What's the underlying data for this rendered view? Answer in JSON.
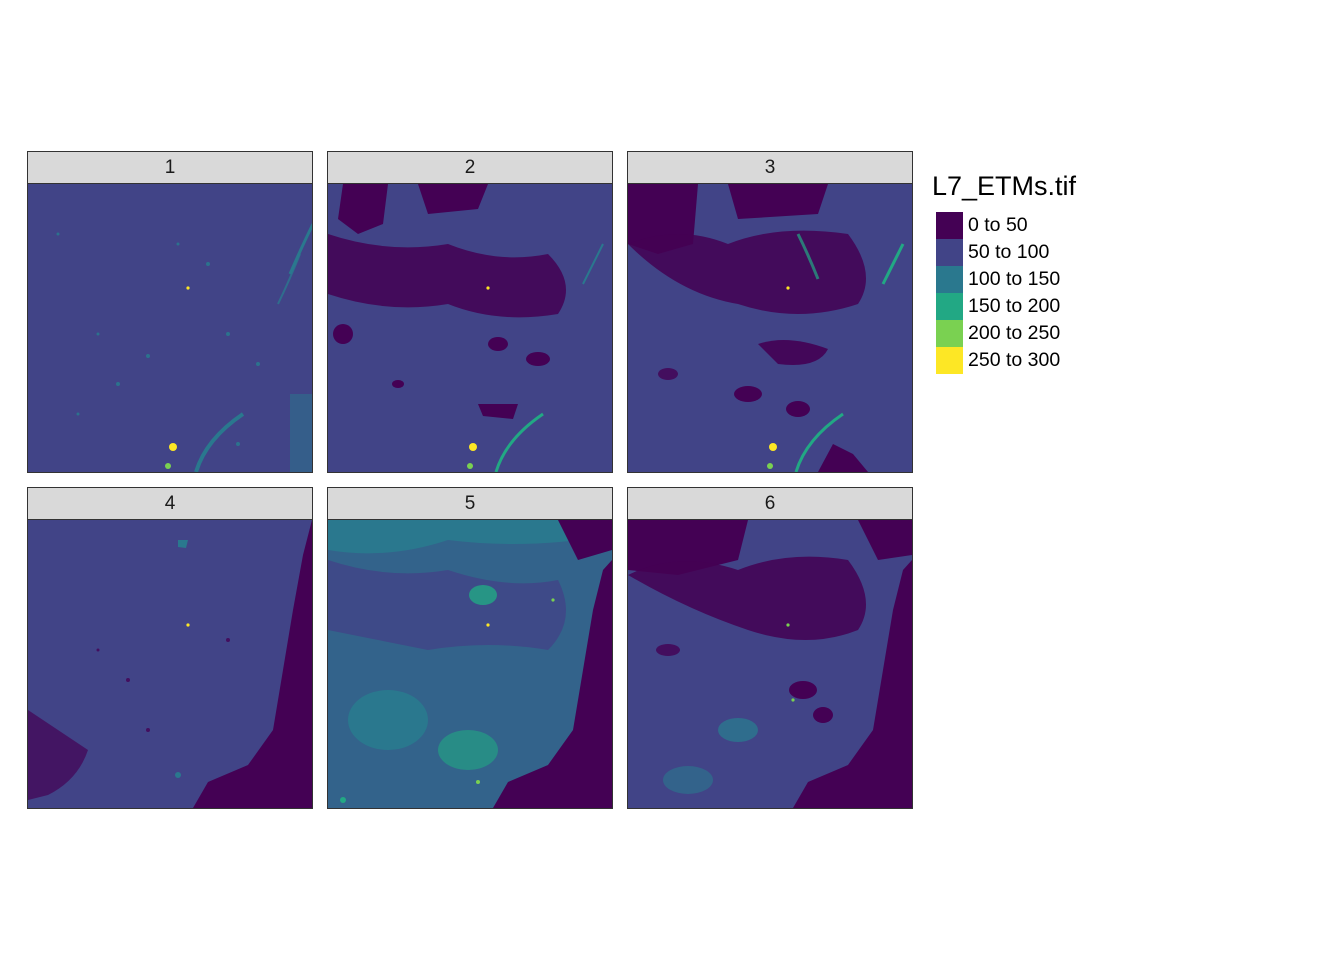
{
  "legend": {
    "title": "L7_ETMs.tif",
    "classes": [
      {
        "label": "0 to 50",
        "color": "#440154"
      },
      {
        "label": "50 to 100",
        "color": "#414487"
      },
      {
        "label": "100 to 150",
        "color": "#2A788E"
      },
      {
        "label": "150 to 200",
        "color": "#22A884"
      },
      {
        "label": "200 to 250",
        "color": "#7AD151"
      },
      {
        "label": "250 to 300",
        "color": "#FDE725"
      }
    ]
  },
  "panels": [
    {
      "label": "1",
      "base_class": 1
    },
    {
      "label": "2",
      "base_class": 1
    },
    {
      "label": "3",
      "base_class": 1
    },
    {
      "label": "4",
      "base_class": 1
    },
    {
      "label": "5",
      "base_class": 1
    },
    {
      "label": "6",
      "base_class": 1
    }
  ]
}
